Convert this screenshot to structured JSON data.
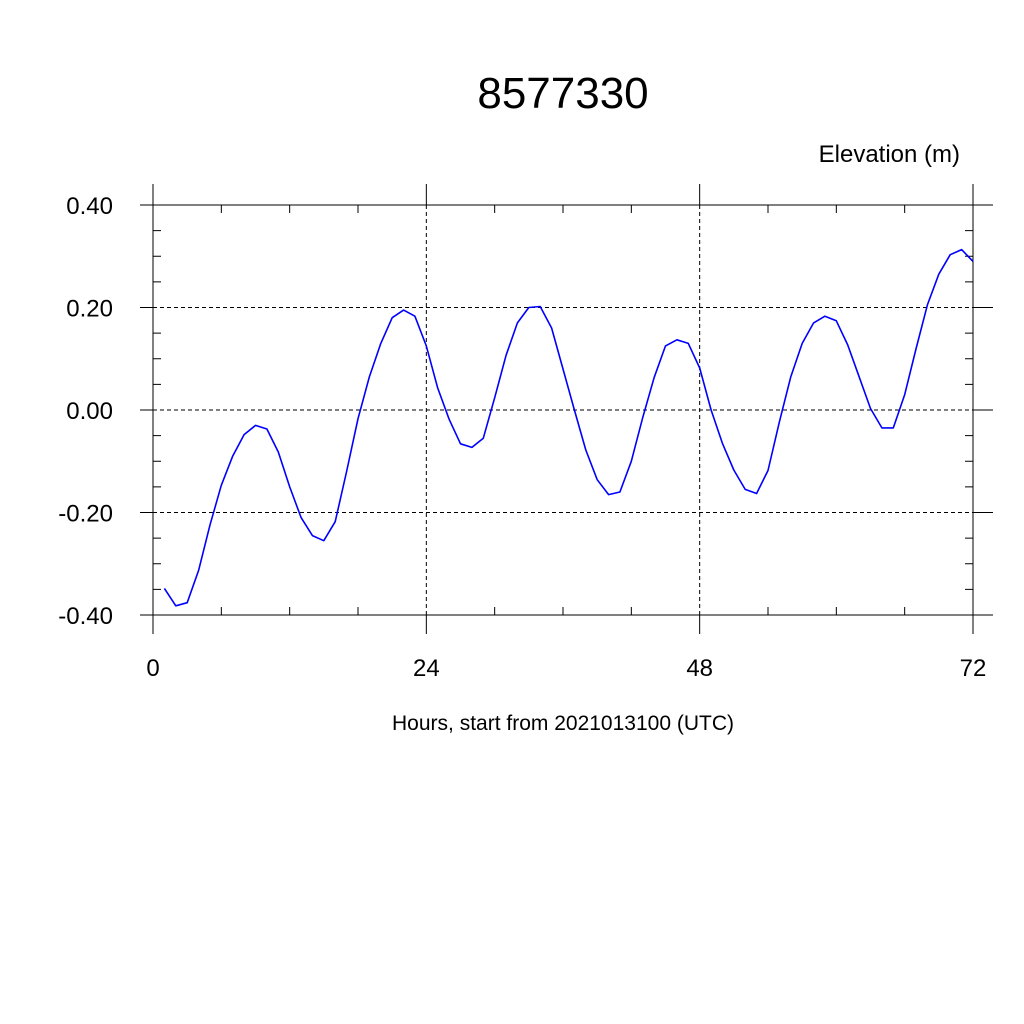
{
  "chart_data": {
    "type": "line",
    "title": "8577330",
    "ylabel": "Elevation (m)",
    "xlabel": "Hours, start from 2021013100 (UTC)",
    "xlim": [
      0,
      72
    ],
    "ylim": [
      -0.4,
      0.4
    ],
    "x_ticks": [
      0,
      24,
      48,
      72
    ],
    "x_tick_labels": [
      "0",
      "24",
      "48",
      "72"
    ],
    "y_ticks": [
      -0.4,
      -0.2,
      0.0,
      0.2,
      0.4
    ],
    "y_tick_labels": [
      "-0.40",
      "-0.20",
      "0.00",
      "0.20",
      "0.40"
    ],
    "grid": true,
    "line_color": "#0000ff",
    "series": [
      {
        "x": [
          1,
          2,
          3,
          4,
          5,
          6,
          7,
          8,
          9,
          10,
          11,
          12,
          13,
          14,
          15,
          16,
          17,
          18,
          19,
          20,
          21,
          22,
          23,
          24,
          25,
          26,
          27,
          28,
          29,
          30,
          31,
          32,
          33,
          34,
          35,
          36,
          37,
          38,
          39,
          40,
          41,
          42,
          43,
          44,
          45,
          46,
          47,
          48,
          49,
          50,
          51,
          52,
          53,
          54,
          55,
          56,
          57,
          58,
          59,
          60,
          61,
          62,
          63,
          64,
          65,
          66,
          67,
          68,
          69,
          70,
          71,
          72
        ],
        "values": [
          -0.348,
          -0.382,
          -0.376,
          -0.313,
          -0.225,
          -0.147,
          -0.09,
          -0.048,
          -0.03,
          -0.037,
          -0.082,
          -0.15,
          -0.21,
          -0.245,
          -0.255,
          -0.218,
          -0.12,
          -0.017,
          0.065,
          0.13,
          0.18,
          0.195,
          0.183,
          0.125,
          0.043,
          -0.018,
          -0.066,
          -0.073,
          -0.055,
          0.024,
          0.107,
          0.17,
          0.2,
          0.202,
          0.16,
          0.08,
          0.0,
          -0.078,
          -0.136,
          -0.165,
          -0.16,
          -0.1,
          -0.015,
          0.063,
          0.125,
          0.137,
          0.13,
          0.082,
          0.0,
          -0.065,
          -0.117,
          -0.155,
          -0.163,
          -0.118,
          -0.023,
          0.065,
          0.13,
          0.17,
          0.183,
          0.174,
          0.127,
          0.065,
          0.003,
          -0.035,
          -0.035,
          0.03,
          0.12,
          0.205,
          0.265,
          0.303,
          0.313,
          0.29
        ]
      }
    ]
  }
}
